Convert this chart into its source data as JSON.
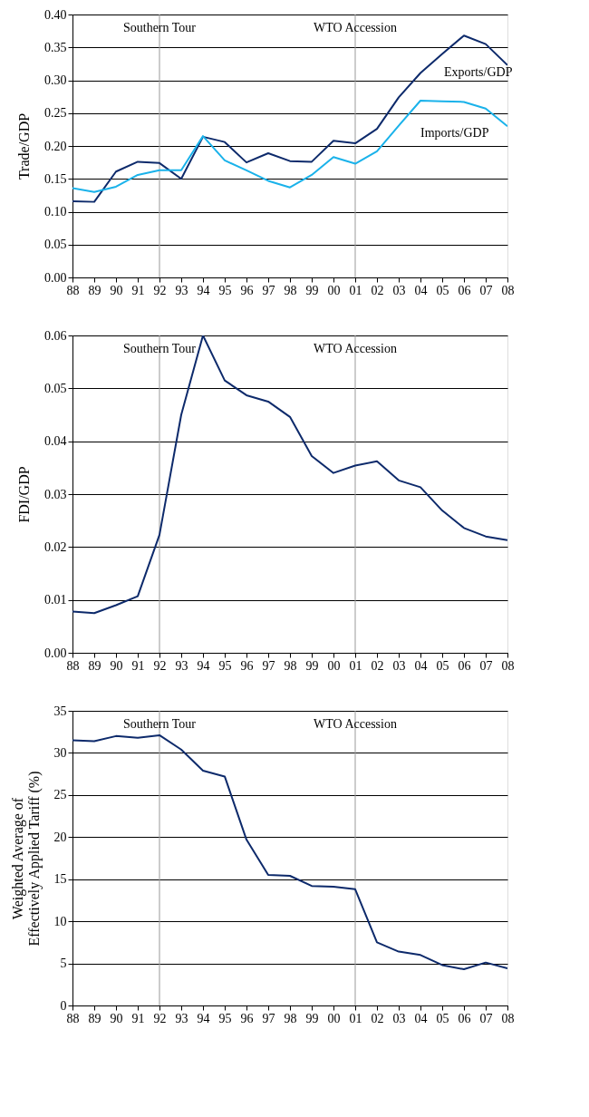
{
  "chart_data": [
    {
      "type": "line",
      "ylabel": "Trade/GDP",
      "categories": [
        "88",
        "89",
        "90",
        "91",
        "92",
        "93",
        "94",
        "95",
        "96",
        "97",
        "98",
        "99",
        "00",
        "01",
        "02",
        "03",
        "04",
        "05",
        "06",
        "07",
        "08"
      ],
      "series": [
        {
          "name": "Exports/GDP",
          "color": "#0d2a6b",
          "values": [
            0.116,
            0.115,
            0.161,
            0.176,
            0.174,
            0.15,
            0.214,
            0.206,
            0.175,
            0.189,
            0.177,
            0.176,
            0.208,
            0.204,
            0.226,
            0.274,
            0.311,
            0.34,
            0.368,
            0.355,
            0.323
          ]
        },
        {
          "name": "Imports/GDP",
          "color": "#1ab2ea",
          "values": [
            0.136,
            0.13,
            0.138,
            0.156,
            0.163,
            0.163,
            0.215,
            0.178,
            0.163,
            0.147,
            0.137,
            0.156,
            0.183,
            0.173,
            0.192,
            0.231,
            0.269,
            0.268,
            0.267,
            0.257,
            0.23
          ]
        }
      ],
      "ylim": [
        0,
        0.4
      ],
      "yticks": [
        {
          "value": 0,
          "label": "0.00"
        },
        {
          "value": 0.05,
          "label": "0.05"
        },
        {
          "value": 0.1,
          "label": "0.10"
        },
        {
          "value": 0.15,
          "label": "0.15"
        },
        {
          "value": 0.2,
          "label": "0.20"
        },
        {
          "value": 0.25,
          "label": "0.25"
        },
        {
          "value": 0.3,
          "label": "0.30"
        },
        {
          "value": 0.35,
          "label": "0.35"
        },
        {
          "value": 0.4,
          "label": "0.40"
        }
      ],
      "grid": "y",
      "ref_lines": [
        {
          "axis": "x",
          "value": "92",
          "label": "Southern Tour",
          "color": "#999999"
        },
        {
          "axis": "x",
          "value": "01",
          "label": "WTO Accession",
          "color": "#999999"
        }
      ]
    },
    {
      "type": "line",
      "ylabel": "FDI/GDP",
      "categories": [
        "88",
        "89",
        "90",
        "91",
        "92",
        "93",
        "94",
        "95",
        "96",
        "97",
        "98",
        "99",
        "00",
        "01",
        "02",
        "03",
        "04",
        "05",
        "06",
        "07",
        "08"
      ],
      "series": [
        {
          "color": "#0d2a6b",
          "values": [
            0.0078,
            0.0075,
            0.009,
            0.0107,
            0.0223,
            0.045,
            0.06,
            0.0515,
            0.0487,
            0.0475,
            0.0446,
            0.0372,
            0.034,
            0.0354,
            0.0362,
            0.0326,
            0.0313,
            0.0269,
            0.0236,
            0.022,
            0.0213
          ]
        }
      ],
      "ylim": [
        0,
        0.06
      ],
      "yticks": [
        {
          "value": 0,
          "label": "0.00"
        },
        {
          "value": 0.01,
          "label": "0.01"
        },
        {
          "value": 0.02,
          "label": "0.02"
        },
        {
          "value": 0.03,
          "label": "0.03"
        },
        {
          "value": 0.04,
          "label": "0.04"
        },
        {
          "value": 0.05,
          "label": "0.05"
        },
        {
          "value": 0.06,
          "label": "0.06"
        }
      ],
      "grid": "y",
      "ref_lines": [
        {
          "axis": "x",
          "value": "92",
          "label": "Southern Tour",
          "color": "#999999"
        },
        {
          "axis": "x",
          "value": "01",
          "label": "WTO Accession",
          "color": "#999999"
        }
      ]
    },
    {
      "type": "line",
      "ylabel": "Weighted Average of\nEffectively Applied Tariff (%)",
      "categories": [
        "88",
        "89",
        "90",
        "91",
        "92",
        "93",
        "94",
        "95",
        "96",
        "97",
        "98",
        "99",
        "00",
        "01",
        "02",
        "03",
        "04",
        "05",
        "06",
        "07",
        "08"
      ],
      "series": [
        {
          "color": "#0d2a6b",
          "values": [
            31.5,
            31.4,
            32.0,
            31.8,
            32.1,
            30.4,
            27.9,
            27.2,
            19.7,
            15.5,
            15.4,
            14.2,
            14.1,
            13.8,
            7.5,
            6.4,
            6.0,
            4.8,
            4.3,
            5.1,
            4.4
          ]
        }
      ],
      "ylim": [
        0,
        35
      ],
      "yticks": [
        0,
        5,
        10,
        15,
        20,
        25,
        30,
        35
      ],
      "grid": "y",
      "ref_lines": [
        {
          "axis": "x",
          "value": "92",
          "label": "Southern Tour",
          "color": "#999999"
        },
        {
          "axis": "x",
          "value": "01",
          "label": "WTO Accession",
          "color": "#999999"
        }
      ]
    }
  ]
}
